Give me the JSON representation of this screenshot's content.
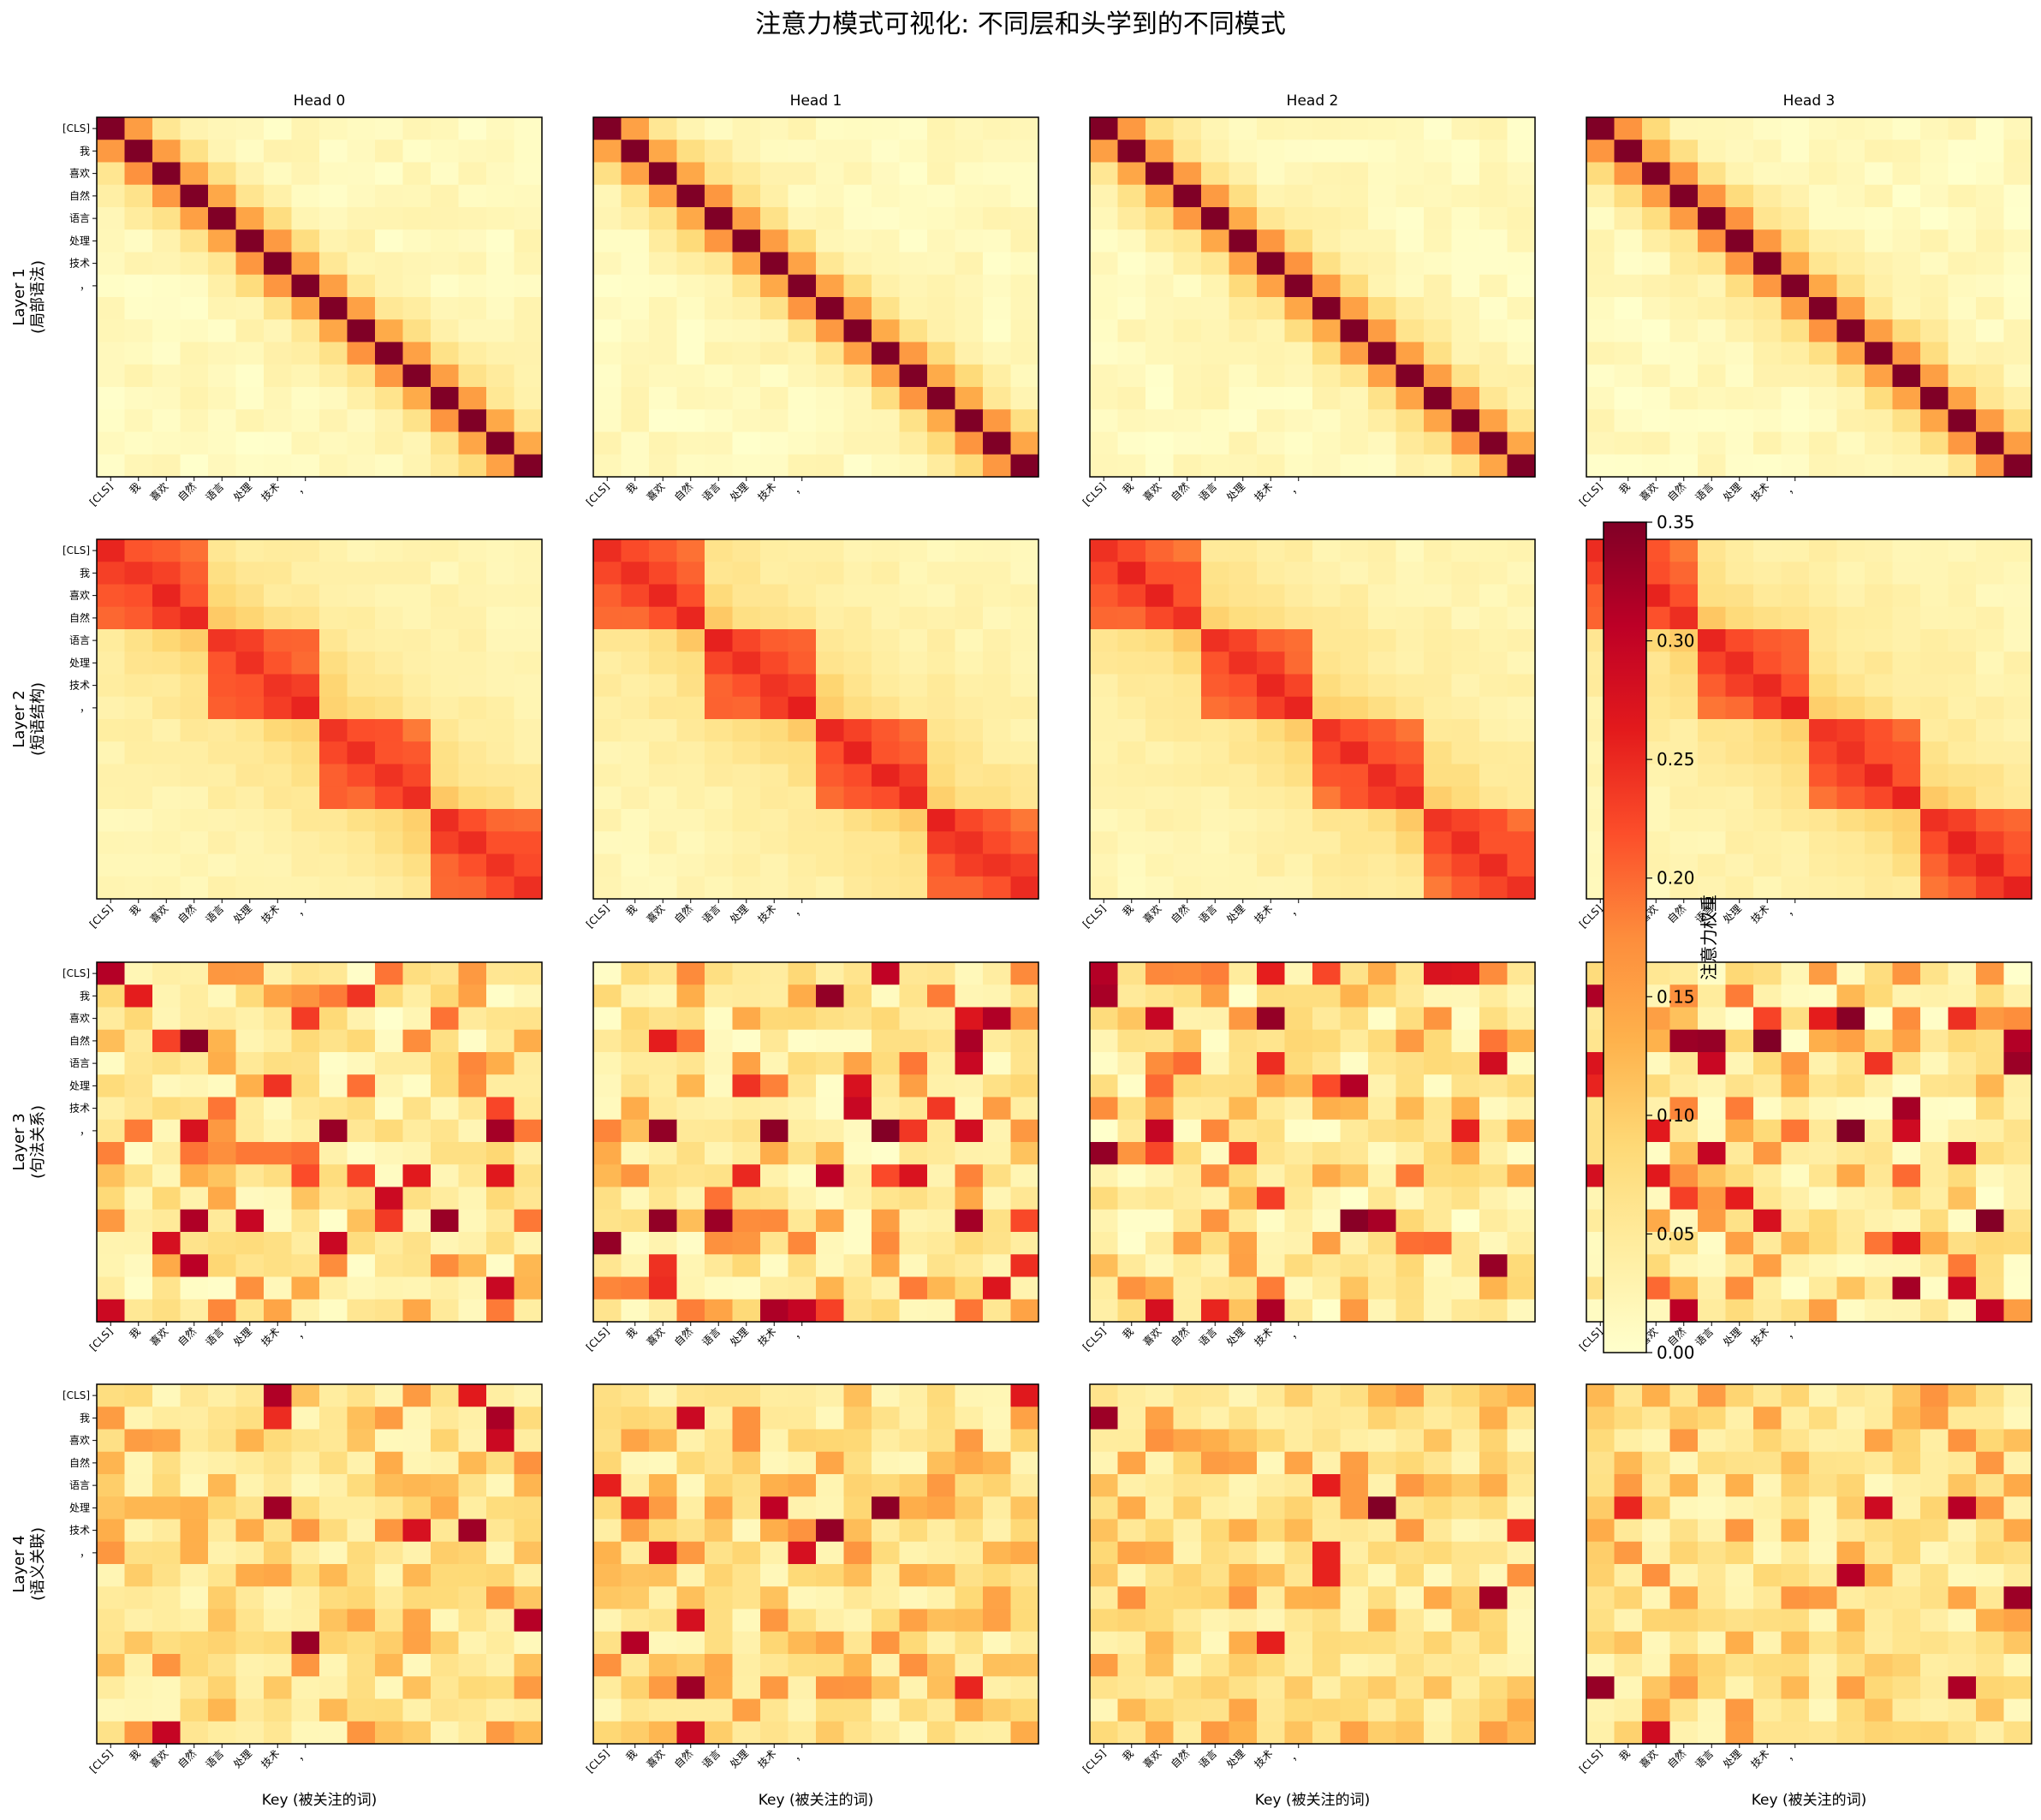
{
  "chart_data": {
    "type": "heatmap",
    "title": "注意力模式可视化: 不同层和头学到的不同模式",
    "heads": [
      "Head 0",
      "Head 1",
      "Head 2",
      "Head 3"
    ],
    "layers": [
      {
        "label": "Layer 1",
        "sublabel": "(局部语法)",
        "pattern": "local diagonal attention"
      },
      {
        "label": "Layer 2",
        "sublabel": "(短语结构)",
        "pattern": "phrase-block attention"
      },
      {
        "label": "Layer 3",
        "sublabel": "(句法关系)",
        "pattern": "sparse long-range attention"
      },
      {
        "label": "Layer 4",
        "sublabel": "(语义关联)",
        "pattern": "diffuse semantic attention"
      }
    ],
    "tokens": [
      "[CLS]",
      "我",
      "喜欢",
      "自然",
      "语言",
      "处理",
      "技术",
      "，"
    ],
    "matrix_size": 16,
    "xlabel": "Key (被关注的词)",
    "colorbar": {
      "label": "注意力权重",
      "colormap": "YlOrRd",
      "vmin": 0.0,
      "vmax": 0.35,
      "ticks": [
        "0.00",
        "0.05",
        "0.10",
        "0.15",
        "0.20",
        "0.25",
        "0.30",
        "0.35"
      ]
    }
  }
}
